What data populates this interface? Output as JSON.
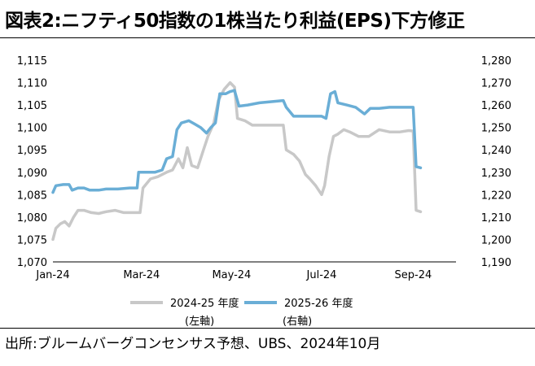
{
  "title": "図表2:ニフティ50指数の1株当たり利益(EPS)下方修正",
  "source": "出所:ブルームバーグコンセンサス予想、UBS、2024年10月",
  "chart_data": {
    "type": "line",
    "x_range": [
      "2024-01-01",
      "2024-09-30"
    ],
    "x_ticks": [
      {
        "label": "Jan-24",
        "date": "2024-01-01"
      },
      {
        "label": "Mar-24",
        "date": "2024-03-01"
      },
      {
        "label": "May-24",
        "date": "2024-05-01"
      },
      {
        "label": "Jul-24",
        "date": "2024-07-01"
      },
      {
        "label": "Sep-24",
        "date": "2024-09-01"
      }
    ],
    "y_left": {
      "range": [
        1070,
        1115
      ],
      "ticks": [
        "1,070",
        "1,075",
        "1,080",
        "1,085",
        "1,090",
        "1,095",
        "1,100",
        "1,105",
        "1,110",
        "1,115"
      ]
    },
    "y_right": {
      "range": [
        1190,
        1280
      ],
      "ticks": [
        "1,190",
        "1,200",
        "1,210",
        "1,220",
        "1,230",
        "1,240",
        "1,250",
        "1,260",
        "1,270",
        "1,280"
      ]
    },
    "grid": false,
    "legend_position": "bottom",
    "series": [
      {
        "name": "2024-25 年度",
        "axis_note": "(左軸)",
        "axis": "left",
        "color": "#c8c8c8",
        "points": [
          [
            "2024-01-01",
            1075
          ],
          [
            "2024-01-03",
            1077.5
          ],
          [
            "2024-01-06",
            1078.5
          ],
          [
            "2024-01-09",
            1079
          ],
          [
            "2024-01-12",
            1078
          ],
          [
            "2024-01-15",
            1080
          ],
          [
            "2024-01-18",
            1081.5
          ],
          [
            "2024-01-22",
            1081.5
          ],
          [
            "2024-01-27",
            1081
          ],
          [
            "2024-02-01",
            1080.8
          ],
          [
            "2024-02-06",
            1081.2
          ],
          [
            "2024-02-12",
            1081.5
          ],
          [
            "2024-02-18",
            1081
          ],
          [
            "2024-02-24",
            1081
          ],
          [
            "2024-02-29",
            1081
          ],
          [
            "2024-03-02",
            1086.5
          ],
          [
            "2024-03-07",
            1088.5
          ],
          [
            "2024-03-12",
            1089
          ],
          [
            "2024-03-18",
            1090
          ],
          [
            "2024-03-22",
            1090.5
          ],
          [
            "2024-03-26",
            1093
          ],
          [
            "2024-03-29",
            1091
          ],
          [
            "2024-04-01",
            1095.5
          ],
          [
            "2024-04-04",
            1091.5
          ],
          [
            "2024-04-08",
            1091
          ],
          [
            "2024-04-12",
            1095
          ],
          [
            "2024-04-15",
            1098
          ],
          [
            "2024-04-19",
            1101
          ],
          [
            "2024-04-22",
            1106
          ],
          [
            "2024-04-26",
            1108.5
          ],
          [
            "2024-04-30",
            1110
          ],
          [
            "2024-05-03",
            1109
          ],
          [
            "2024-05-05",
            1102
          ],
          [
            "2024-05-10",
            1101.5
          ],
          [
            "2024-05-15",
            1100.5
          ],
          [
            "2024-05-20",
            1100.5
          ],
          [
            "2024-05-28",
            1100.5
          ],
          [
            "2024-06-05",
            1100.5
          ],
          [
            "2024-06-07",
            1095
          ],
          [
            "2024-06-12",
            1094
          ],
          [
            "2024-06-16",
            1092.5
          ],
          [
            "2024-06-20",
            1089.5
          ],
          [
            "2024-06-23",
            1088.5
          ],
          [
            "2024-06-27",
            1087
          ],
          [
            "2024-07-01",
            1085
          ],
          [
            "2024-07-03",
            1087
          ],
          [
            "2024-07-06",
            1093.5
          ],
          [
            "2024-07-09",
            1098
          ],
          [
            "2024-07-12",
            1098.5
          ],
          [
            "2024-07-16",
            1099.5
          ],
          [
            "2024-07-20",
            1099
          ],
          [
            "2024-07-26",
            1098
          ],
          [
            "2024-08-02",
            1098
          ],
          [
            "2024-08-09",
            1099.5
          ],
          [
            "2024-08-16",
            1099
          ],
          [
            "2024-08-23",
            1099
          ],
          [
            "2024-08-29",
            1099.3
          ],
          [
            "2024-09-01",
            1099.2
          ],
          [
            "2024-09-03",
            1081.5
          ],
          [
            "2024-09-06",
            1081.2
          ]
        ]
      },
      {
        "name": "2025-26 年度",
        "axis_note": "(右軸)",
        "axis": "right",
        "color": "#6aaed6",
        "points": [
          [
            "2024-01-01",
            1221
          ],
          [
            "2024-01-03",
            1224
          ],
          [
            "2024-01-08",
            1224.5
          ],
          [
            "2024-01-12",
            1224.5
          ],
          [
            "2024-01-14",
            1222
          ],
          [
            "2024-01-18",
            1223
          ],
          [
            "2024-01-22",
            1223
          ],
          [
            "2024-01-26",
            1222
          ],
          [
            "2024-02-01",
            1222
          ],
          [
            "2024-02-06",
            1222.5
          ],
          [
            "2024-02-14",
            1222.5
          ],
          [
            "2024-02-22",
            1223
          ],
          [
            "2024-02-27",
            1223
          ],
          [
            "2024-02-28",
            1230
          ],
          [
            "2024-03-05",
            1230
          ],
          [
            "2024-03-10",
            1230
          ],
          [
            "2024-03-15",
            1231
          ],
          [
            "2024-03-18",
            1236
          ],
          [
            "2024-03-22",
            1237
          ],
          [
            "2024-03-25",
            1249
          ],
          [
            "2024-03-28",
            1252
          ],
          [
            "2024-04-02",
            1253
          ],
          [
            "2024-04-06",
            1251.5
          ],
          [
            "2024-04-10",
            1250
          ],
          [
            "2024-04-14",
            1247.5
          ],
          [
            "2024-04-17",
            1250
          ],
          [
            "2024-04-20",
            1252
          ],
          [
            "2024-04-23",
            1265
          ],
          [
            "2024-04-27",
            1265
          ],
          [
            "2024-04-30",
            1266
          ],
          [
            "2024-05-03",
            1266.5
          ],
          [
            "2024-05-06",
            1259.5
          ],
          [
            "2024-05-12",
            1260
          ],
          [
            "2024-05-20",
            1261
          ],
          [
            "2024-05-28",
            1261.5
          ],
          [
            "2024-06-05",
            1262
          ],
          [
            "2024-06-07",
            1259
          ],
          [
            "2024-06-12",
            1255
          ],
          [
            "2024-06-16",
            1255
          ],
          [
            "2024-06-22",
            1255
          ],
          [
            "2024-06-28",
            1255
          ],
          [
            "2024-07-01",
            1255
          ],
          [
            "2024-07-04",
            1254
          ],
          [
            "2024-07-07",
            1265
          ],
          [
            "2024-07-10",
            1266
          ],
          [
            "2024-07-12",
            1261
          ],
          [
            "2024-07-18",
            1260
          ],
          [
            "2024-07-24",
            1259
          ],
          [
            "2024-07-30",
            1256
          ],
          [
            "2024-08-03",
            1258.5
          ],
          [
            "2024-08-09",
            1258.5
          ],
          [
            "2024-08-16",
            1259
          ],
          [
            "2024-08-24",
            1259
          ],
          [
            "2024-08-31",
            1259
          ],
          [
            "2024-09-01",
            1259
          ],
          [
            "2024-09-03",
            1232.5
          ],
          [
            "2024-09-06",
            1232
          ]
        ]
      }
    ]
  }
}
